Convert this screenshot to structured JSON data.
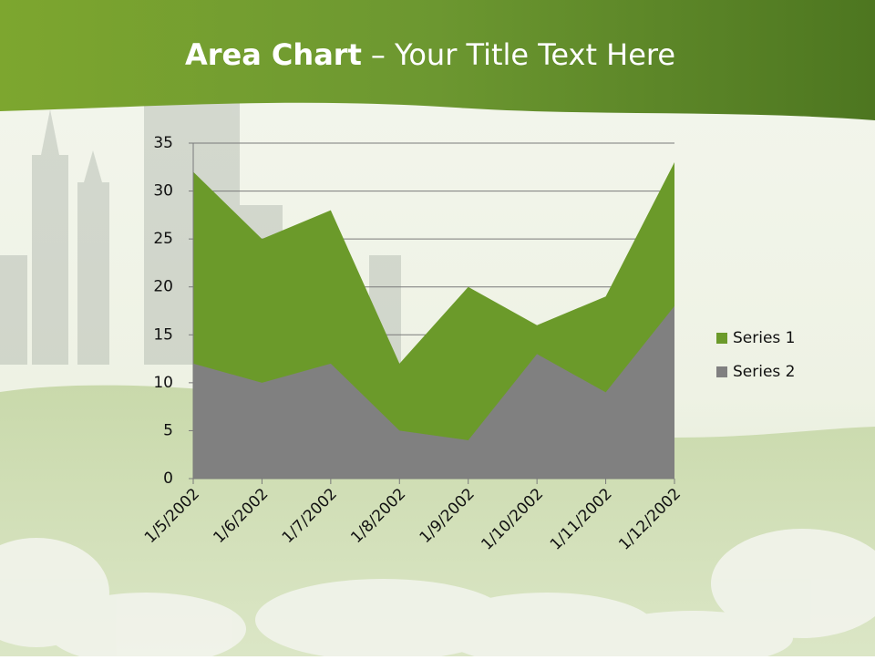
{
  "chart_data": {
    "type": "area",
    "title": "Area Chart",
    "title_rest": "– Your Title Text Here",
    "categories": [
      "1/5/2002",
      "1/6/2002",
      "1/7/2002",
      "1/8/2002",
      "1/9/2002",
      "1/10/2002",
      "1/11/2002",
      "1/12/2002"
    ],
    "series": [
      {
        "name": "Series 1",
        "color": "#6b9a2a",
        "values": [
          32,
          25,
          28,
          12,
          20,
          16,
          19,
          33
        ]
      },
      {
        "name": "Series 2",
        "color": "#808080",
        "values": [
          12,
          10,
          12,
          5,
          4,
          13,
          9,
          18
        ]
      }
    ],
    "ylim": [
      0,
      35
    ],
    "yticks": [
      0,
      5,
      10,
      15,
      20,
      25,
      30,
      35
    ],
    "grid": true,
    "legend": "right"
  }
}
